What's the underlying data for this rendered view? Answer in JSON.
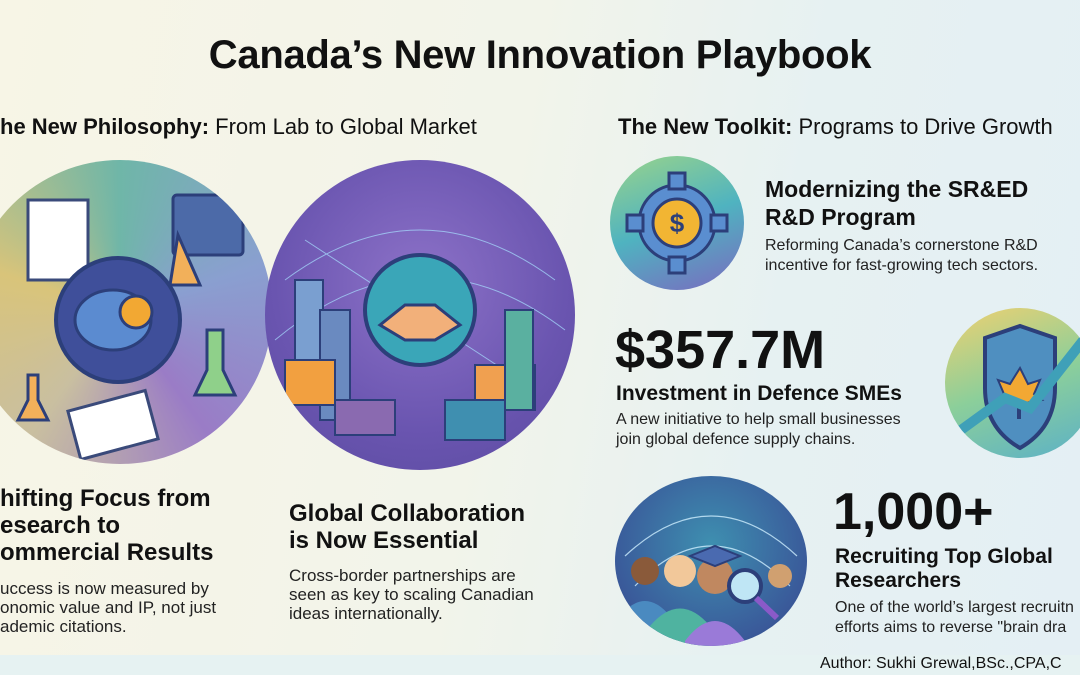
{
  "title": "Canada’s New Innovation Playbook",
  "left_section": {
    "label_bold": "he New Philosophy:",
    "label_rest": " From Lab to Global Market"
  },
  "right_section": {
    "label_bold": "The New Toolkit:",
    "label_rest": " Programs to Drive Growth"
  },
  "philosophy": [
    {
      "heading_lines": [
        "hifting Focus from",
        "esearch to",
        "ommercial Results"
      ],
      "body_lines": [
        "uccess is now measured by",
        "onomic value and IP, not just",
        "ademic citations."
      ],
      "icon": "brain-lab-icon"
    },
    {
      "heading_lines": [
        "Global Collaboration",
        "is Now Essential"
      ],
      "body_lines": [
        "Cross-border partnerships are",
        "seen as key to scaling Canadian",
        "ideas internationally."
      ],
      "icon": "handshake-globe-icon"
    }
  ],
  "toolkit": [
    {
      "heading_lines": [
        "Modernizing the SR&ED",
        "R&D Program"
      ],
      "body_lines": [
        "Reforming Canada’s cornerstone R&D",
        "incentive for fast-growing tech sectors."
      ],
      "icon": "gear-dollar-icon"
    },
    {
      "stat": "$357.7M",
      "heading": "Investment in Defence SMEs",
      "body_lines": [
        "A new initiative to help small businesses",
        "join global defence supply chains."
      ],
      "icon": "shield-maple-leaf-icon"
    },
    {
      "stat": "1,000+",
      "heading_lines": [
        "Recruiting Top Global",
        "Researchers"
      ],
      "body_lines": [
        "One of the world’s largest recruitn",
        "efforts aims to reverse \"brain dra"
      ],
      "icon": "globe-researchers-icon"
    }
  ],
  "author": "Author: Sukhi Grewal,BSc.,CPA,C",
  "colors": {
    "purple": "#7a5bb5",
    "teal": "#4fb3ad",
    "gold": "#f2b533",
    "navy": "#2c3f7a"
  }
}
